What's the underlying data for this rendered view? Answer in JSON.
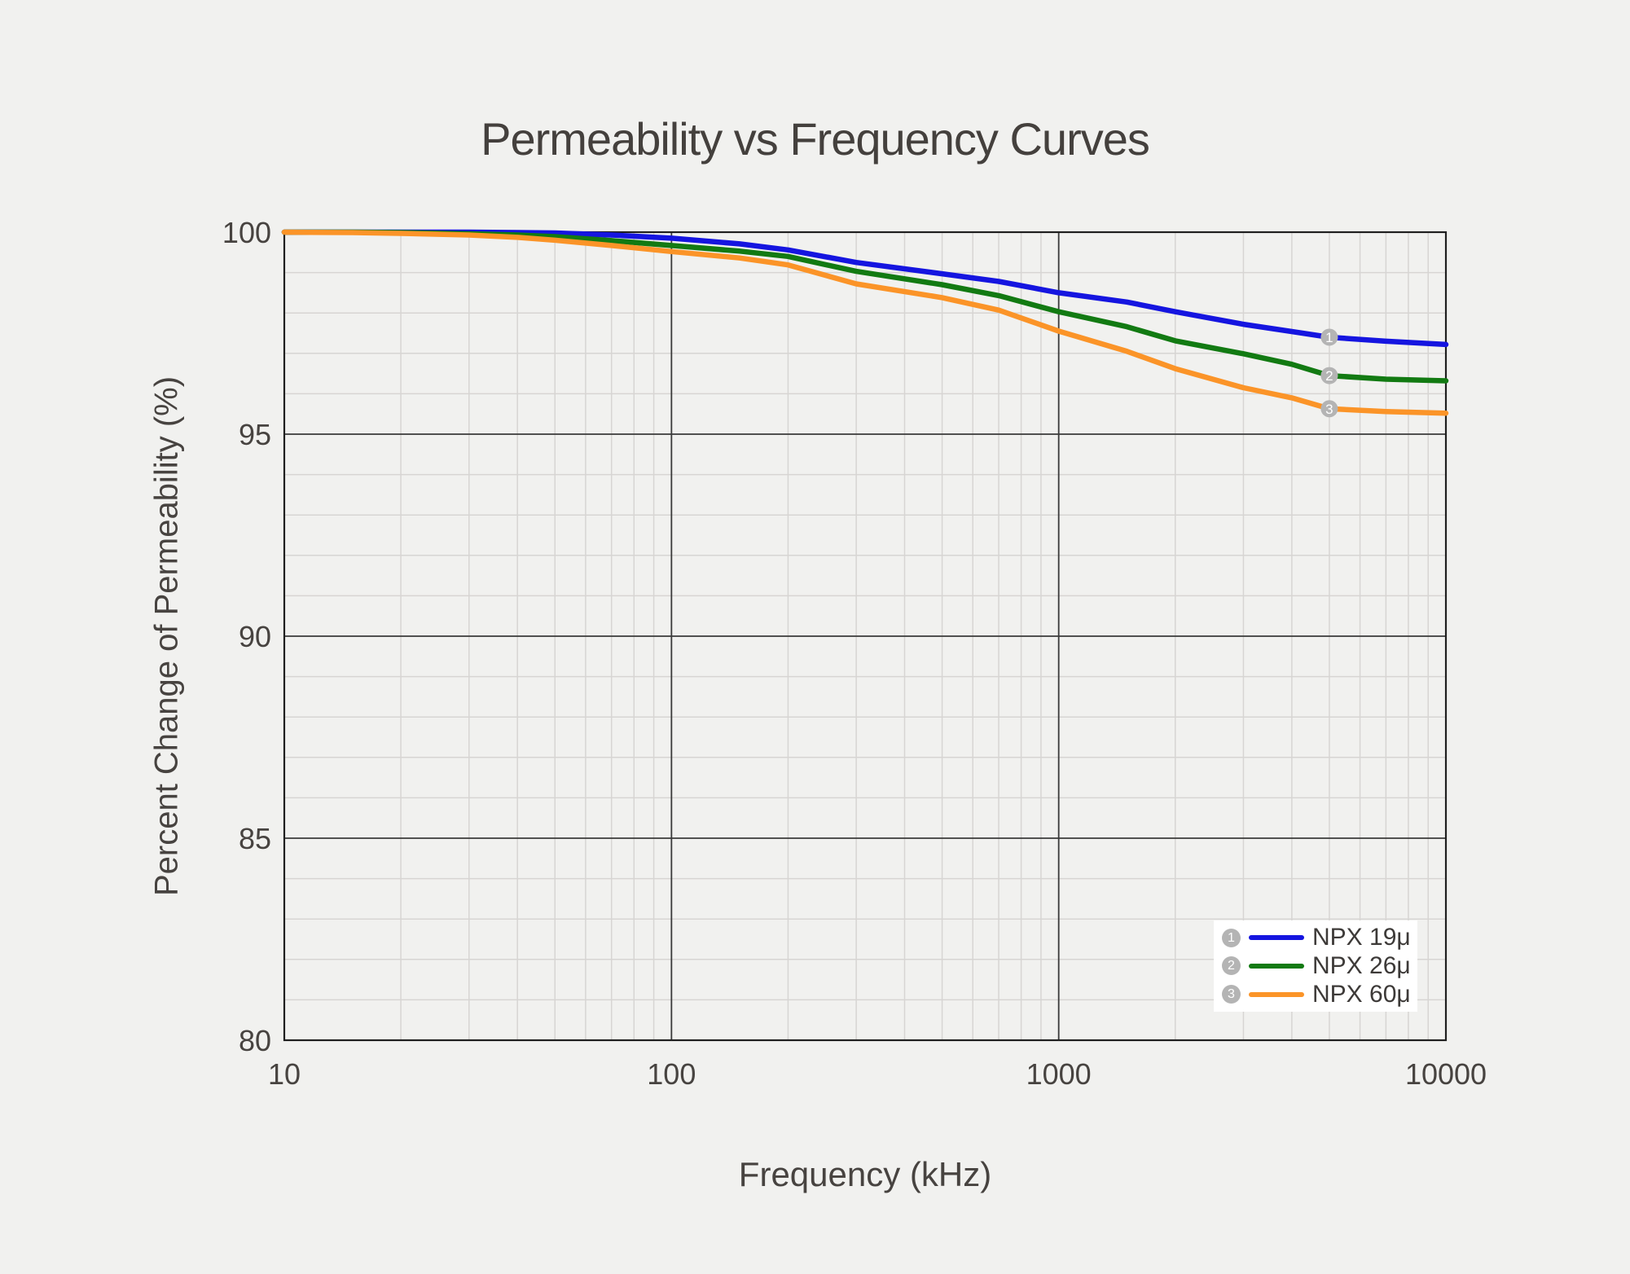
{
  "title": "Permeability vs Frequency Curves",
  "colors": {
    "background": "#f1f1ef",
    "grid_minor": "#d7d5d3",
    "grid_major": "#3a3a3a",
    "axis_border": "#1f1f1f",
    "text": "#474340",
    "legend_background": "#ffffff",
    "curve_marker_fill": "#b4b4b4",
    "curve_marker_text": "#ffffff"
  },
  "chart_data": {
    "type": "line",
    "title": "Permeability vs Frequency Curves",
    "xlabel": "Frequency (kHz)",
    "ylabel": "Percent Change of Permeability (%)",
    "x_scale": "log",
    "xlim": [
      10,
      10000
    ],
    "ylim": [
      80,
      100
    ],
    "x_ticks": [
      10,
      100,
      1000,
      10000
    ],
    "y_ticks": [
      80,
      85,
      90,
      95,
      100
    ],
    "grid": true,
    "legend_position": "bottom-right",
    "x": [
      10,
      15,
      20,
      30,
      40,
      50,
      70,
      100,
      150,
      200,
      300,
      500,
      700,
      1000,
      1500,
      2000,
      3000,
      4000,
      5000,
      7000,
      10000
    ],
    "series": [
      {
        "name": "NPX 19μ",
        "marker": "1",
        "color": "#1515e0",
        "values": [
          100,
          100,
          100,
          100,
          99.99,
          99.98,
          99.93,
          99.85,
          99.71,
          99.56,
          99.25,
          98.97,
          98.78,
          98.5,
          98.27,
          98.03,
          97.72,
          97.54,
          97.4,
          97.3,
          97.22
        ]
      },
      {
        "name": "NPX 26μ",
        "marker": "2",
        "color": "#127a12",
        "values": [
          100,
          100,
          99.99,
          99.96,
          99.93,
          99.89,
          99.79,
          99.67,
          99.53,
          99.4,
          99.03,
          98.7,
          98.43,
          98.03,
          97.66,
          97.31,
          96.99,
          96.73,
          96.45,
          96.36,
          96.32
        ]
      },
      {
        "name": "NPX 60μ",
        "marker": "3",
        "color": "#fb9428",
        "values": [
          100,
          99.99,
          99.97,
          99.93,
          99.87,
          99.8,
          99.67,
          99.52,
          99.36,
          99.19,
          98.72,
          98.38,
          98.07,
          97.55,
          97.05,
          96.62,
          96.15,
          95.9,
          95.63,
          95.56,
          95.52
        ]
      }
    ],
    "curve_marker_x": 5000
  }
}
